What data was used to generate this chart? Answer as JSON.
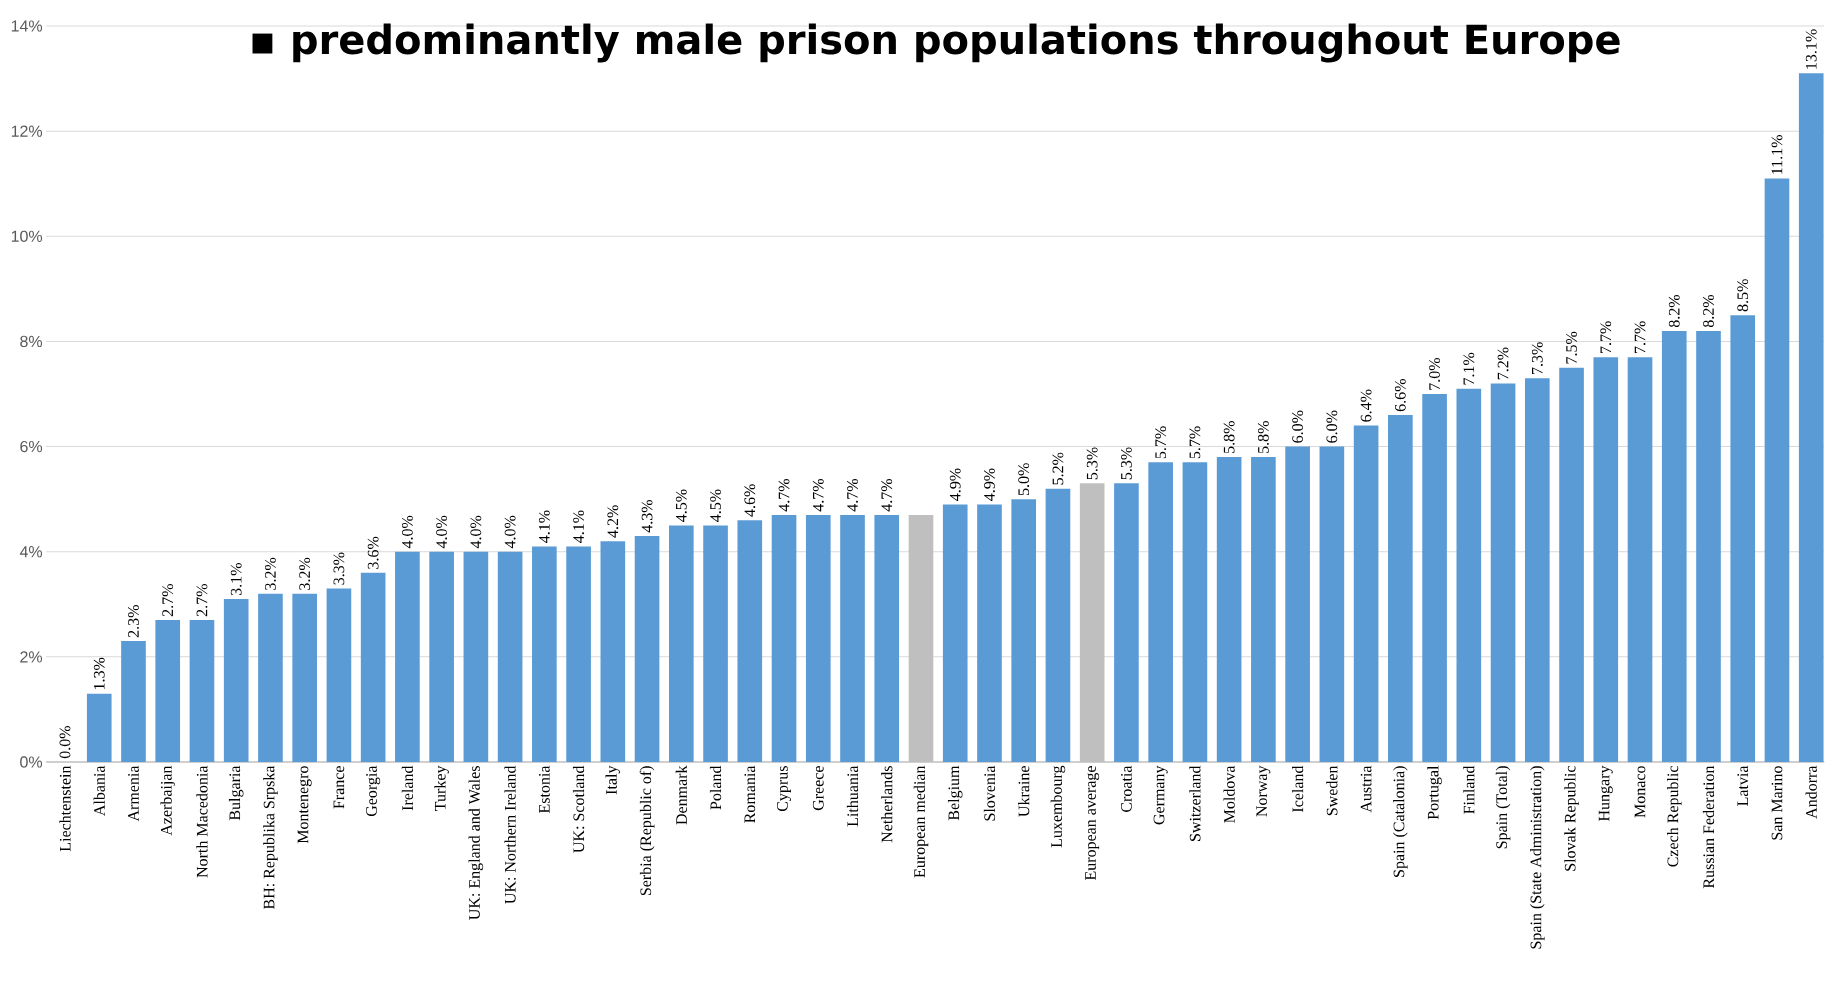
{
  "chart_data": {
    "type": "bar",
    "title": "▪ predominantly male prison populations throughout Europe",
    "categories": [
      "Liechtenstein",
      "Albania",
      "Armenia",
      "Azerbaijan",
      "North Macedonia",
      "Bulgaria",
      "BH: Republika Srpska",
      "Montenegro",
      "France",
      "Georgia",
      "Ireland",
      "Turkey",
      "UK: England and Wales",
      "UK: Northern Ireland",
      "Estonia",
      "UK: Scotland",
      "Italy",
      "Serbia (Republic of)",
      "Denmark",
      "Poland",
      "Romania",
      "Cyprus",
      "Greece",
      "Lithuania",
      "Netherlands",
      "European median",
      "Belgium",
      "Slovenia",
      "Ukraine",
      "Luxembourg",
      "European average",
      "Croatia",
      "Germany",
      "Switzerland",
      "Moldova",
      "Norway",
      "Iceland",
      "Sweden",
      "Austria",
      "Spain (Catalonia)",
      "Portugal",
      "Finland",
      "Spain (Total)",
      "Spain (State Administration)",
      "Slovak Republic",
      "Hungary",
      "Monaco",
      "Czech Republic",
      "Russian Federation",
      "Latvia",
      "San Marino",
      "Andorra"
    ],
    "values": [
      0.0,
      1.3,
      2.3,
      2.7,
      2.7,
      3.1,
      3.2,
      3.2,
      3.3,
      3.6,
      4.0,
      4.0,
      4.0,
      4.0,
      4.1,
      4.1,
      4.2,
      4.3,
      4.5,
      4.5,
      4.6,
      4.7,
      4.7,
      4.7,
      4.7,
      4.7,
      4.9,
      4.9,
      5.0,
      5.2,
      5.3,
      5.3,
      5.7,
      5.7,
      5.8,
      5.8,
      6.0,
      6.0,
      6.4,
      6.6,
      7.0,
      7.1,
      7.2,
      7.3,
      7.5,
      7.7,
      7.7,
      8.2,
      8.2,
      8.5,
      11.1,
      13.1
    ],
    "value_labels": [
      "0.0%",
      "1.3%",
      "2.3%",
      "2.7%",
      "2.7%",
      "3.1%",
      "3.2%",
      "3.2%",
      "3.3%",
      "3.6%",
      "4.0%",
      "4.0%",
      "4.0%",
      "4.0%",
      "4.1%",
      "4.1%",
      "4.2%",
      "4.3%",
      "4.5%",
      "4.5%",
      "4.6%",
      "4.7%",
      "4.7%",
      "4.7%",
      "4.7%",
      null,
      "4.9%",
      "4.9%",
      "5.0%",
      "5.2%",
      "5.3%",
      "5.3%",
      "5.7%",
      "5.7%",
      "5.8%",
      "5.8%",
      "6.0%",
      "6.0%",
      "6.4%",
      "6.6%",
      "7.0%",
      "7.1%",
      "7.2%",
      "7.3%",
      "7.5%",
      "7.7%",
      "7.7%",
      "8.2%",
      "8.2%",
      "8.5%",
      "11.1%",
      "13.1%"
    ],
    "colors": [
      "#5b9bd5",
      "#5b9bd5",
      "#5b9bd5",
      "#5b9bd5",
      "#5b9bd5",
      "#5b9bd5",
      "#5b9bd5",
      "#5b9bd5",
      "#5b9bd5",
      "#5b9bd5",
      "#5b9bd5",
      "#5b9bd5",
      "#5b9bd5",
      "#5b9bd5",
      "#5b9bd5",
      "#5b9bd5",
      "#5b9bd5",
      "#5b9bd5",
      "#5b9bd5",
      "#5b9bd5",
      "#5b9bd5",
      "#5b9bd5",
      "#5b9bd5",
      "#5b9bd5",
      "#5b9bd5",
      "#bfbfbf",
      "#5b9bd5",
      "#5b9bd5",
      "#5b9bd5",
      "#5b9bd5",
      "#bfbfbf",
      "#5b9bd5",
      "#5b9bd5",
      "#5b9bd5",
      "#5b9bd5",
      "#5b9bd5",
      "#5b9bd5",
      "#5b9bd5",
      "#5b9bd5",
      "#5b9bd5",
      "#5b9bd5",
      "#5b9bd5",
      "#5b9bd5",
      "#5b9bd5",
      "#5b9bd5",
      "#5b9bd5",
      "#5b9bd5",
      "#5b9bd5",
      "#5b9bd5",
      "#5b9bd5",
      "#5b9bd5",
      "#5b9bd5"
    ],
    "ylim": [
      0,
      14
    ],
    "yticks": [
      {
        "value": 0,
        "label": "0%"
      },
      {
        "value": 2,
        "label": "2%"
      },
      {
        "value": 4,
        "label": "4%"
      },
      {
        "value": 6,
        "label": "6%"
      },
      {
        "value": 8,
        "label": "8%"
      },
      {
        "value": 10,
        "label": "10%"
      },
      {
        "value": 12,
        "label": "12%"
      },
      {
        "value": 14,
        "label": "14%"
      }
    ],
    "grid": "y"
  }
}
